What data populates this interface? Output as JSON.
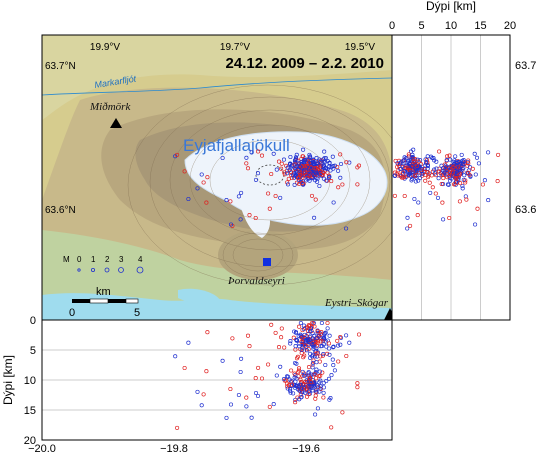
{
  "map": {
    "title": "24.12. 2009 – 2.2. 2010",
    "glacier_label": "Eyjafjallajökull",
    "river_label": "Markarfljót",
    "places": [
      {
        "label": "Miðmörk"
      },
      {
        "label": "Þorvaldseyri"
      },
      {
        "label": "Eystri–Skógar"
      }
    ],
    "lon_labels": [
      "19.9°V",
      "19.7°V",
      "19.5°V"
    ],
    "lat_labels": [
      "63.7°N",
      "63.6°N"
    ],
    "scale_bar": {
      "unit": "km",
      "labels": [
        "0",
        "5"
      ]
    },
    "magnitude_legend": {
      "labels": [
        "M",
        "0",
        "1",
        "2",
        "3",
        "4"
      ]
    },
    "colors": {
      "event_red": "#e02020",
      "event_blue": "#2030d0",
      "station": "#1030e0",
      "glacier": "#eef4fb",
      "sea": "#9fdcee"
    }
  },
  "depth_right": {
    "title": "Dýpi [km]",
    "ticks": [
      "0",
      "5",
      "10",
      "15",
      "20"
    ],
    "lat_ticks": [
      "63.7",
      "63.6"
    ]
  },
  "depth_bottom": {
    "ylabel": "Dýpi [km]",
    "yticks": [
      "0",
      "5",
      "10",
      "15",
      "20"
    ],
    "xticks": [
      "−20.0",
      "−19.8",
      "−19.6"
    ]
  },
  "chart_data": {
    "type": "scatter",
    "title": "24.12. 2009 – 2.2. 2010",
    "xlabel": "",
    "ylabel": "Dýpi [km]",
    "xlim": [
      -20.0,
      -19.47
    ],
    "depth_lim": [
      0,
      20
    ],
    "lat_lim": [
      63.537,
      63.734
    ],
    "clusters": [
      {
        "name": "upper",
        "lon": -19.59,
        "lat": 63.642,
        "depth": 3.5
      },
      {
        "name": "lower",
        "lon": -19.6,
        "lat": 63.64,
        "depth": 10.5
      }
    ]
  }
}
